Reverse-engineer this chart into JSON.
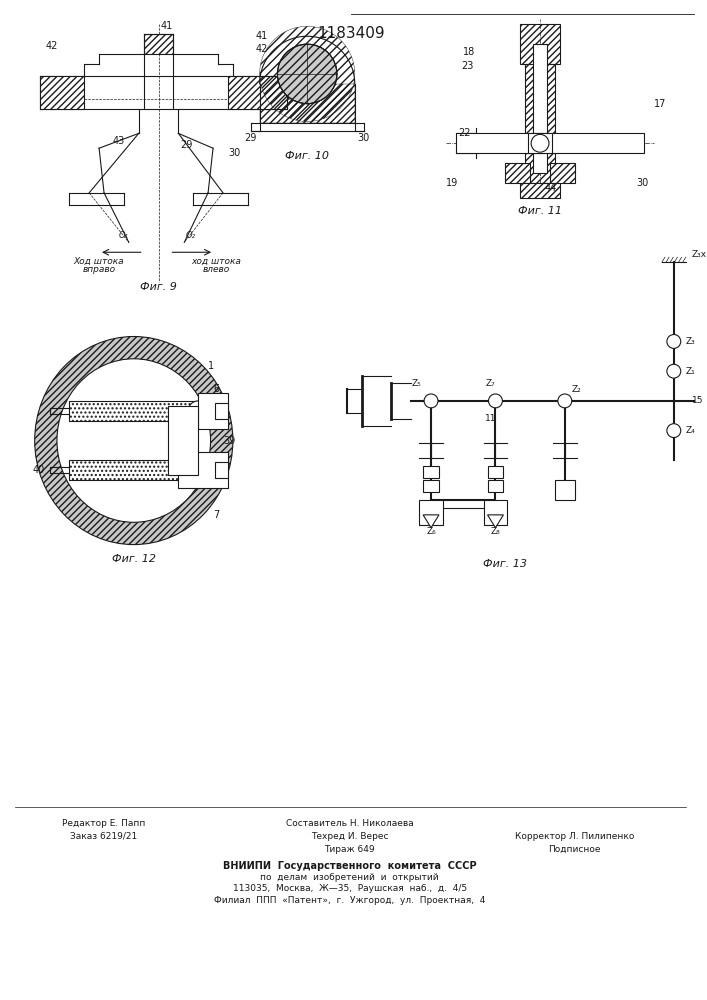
{
  "title": "1183409",
  "bg_color": "#ffffff",
  "line_color": "#1a1a1a",
  "footer_lines_left": [
    "Редактор Е. Папп",
    "Заказ 6219/21"
  ],
  "footer_lines_center_top": "Составитель Н. Николаева",
  "footer_lines_center": [
    "Техред И. Верес",
    "Тираж 649"
  ],
  "footer_lines_right": [
    "Корректор Л. Пилипенко",
    "Подписное"
  ],
  "footer_center": [
    "ВНИИПИ  Государственного  комитета  СССР",
    "по  делам  изобретений  и  открытий",
    "113035,  Москва,  Ж—35,  Раушская  наб.,  д.  4/5",
    "Филиал  ППП  «Патент»,  г.  Ужгород,  ул.  Проектная,  4"
  ],
  "fig9_label": "Фиг. 9",
  "fig10_label": "Фиг. 10",
  "fig11_label": "Фиг. 11",
  "fig12_label": "Фиг. 12",
  "fig13_label": "Фиг. 13"
}
